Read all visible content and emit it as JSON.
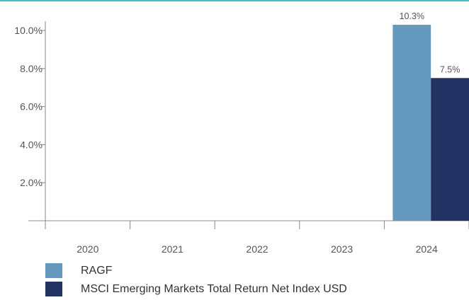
{
  "chart_data": {
    "type": "bar",
    "categories": [
      "2020",
      "2021",
      "2022",
      "2023",
      "2024"
    ],
    "series": [
      {
        "name": "RAGF",
        "color": "#6699be",
        "values": [
          null,
          null,
          null,
          null,
          10.3
        ]
      },
      {
        "name": "MSCI Emerging Markets Total Return Net Index USD",
        "color": "#223363",
        "values": [
          null,
          null,
          null,
          null,
          7.5
        ]
      }
    ],
    "data_labels": [
      "10.3%",
      "7.5%"
    ],
    "y_ticks": [
      "2.0%",
      "4.0%",
      "6.0%",
      "8.0%",
      "10.0%"
    ],
    "ylim": [
      0,
      10.3
    ],
    "grid": false,
    "legend_position": "bottom",
    "title": "",
    "xlabel": "",
    "ylabel": ""
  }
}
